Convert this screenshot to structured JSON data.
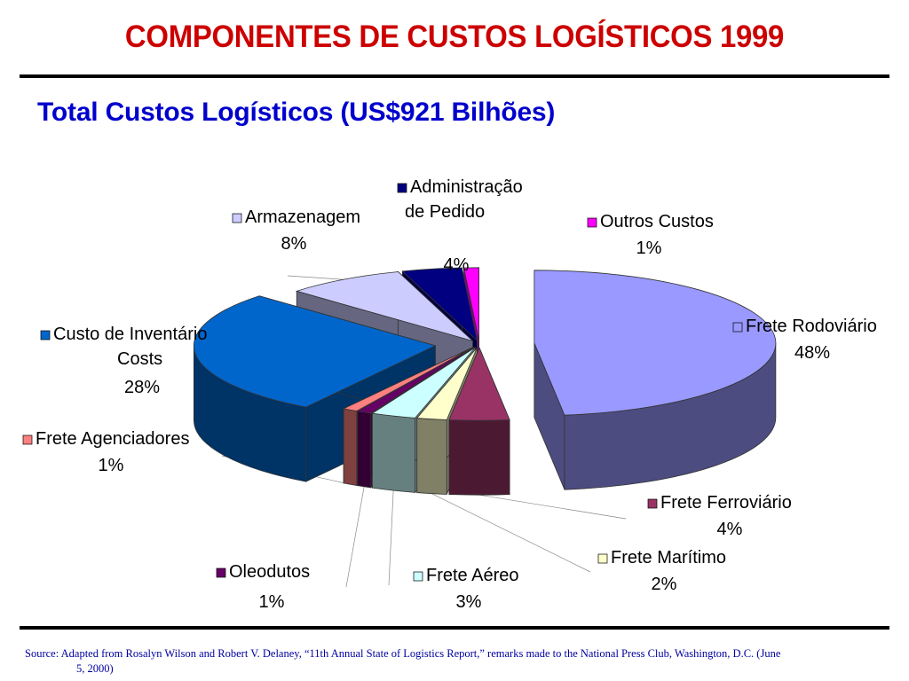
{
  "header": {
    "title": "COMPONENTES DE CUSTOS LOGÍSTICOS 1999",
    "subtitle": "Total Custos Logísticos (US$921 Bilhões)"
  },
  "footer": {
    "source_line1": "Source:  Adapted from Rosalyn Wilson and Robert V. Delaney, “11th Annual State of Logistics Report,” remarks made to the National Press Club, Washington, D.C. (June",
    "source_line2": "5, 2000)"
  },
  "chart_data": {
    "type": "pie",
    "style": "3d-exploded",
    "slices": [
      {
        "label": [
          "Frete Rodoviário"
        ],
        "value": 48,
        "value_label": "48%",
        "color": "#9999ff",
        "side_color": "#4c4c80"
      },
      {
        "label": [
          "Frete Ferroviário"
        ],
        "value": 4,
        "value_label": "4%",
        "color": "#993366",
        "side_color": "#4c1933"
      },
      {
        "label": [
          "Frete Marítimo"
        ],
        "value": 2,
        "value_label": "2%",
        "color": "#ffffcc",
        "side_color": "#808066"
      },
      {
        "label": [
          "Frete Aéreo"
        ],
        "value": 3,
        "value_label": "3%",
        "color": "#ccffff",
        "side_color": "#668080"
      },
      {
        "label": [
          "Oleodutos"
        ],
        "value": 1,
        "value_label": "1%",
        "color": "#660066",
        "side_color": "#330033"
      },
      {
        "label": [
          "Frete Agenciadores"
        ],
        "value": 1,
        "value_label": "1%",
        "color": "#ff8080",
        "side_color": "#804040"
      },
      {
        "label": [
          "Custo de Inventário",
          "Costs"
        ],
        "value": 28,
        "value_label": "28%",
        "color": "#0066cc",
        "side_color": "#003366"
      },
      {
        "label": [
          "Armazenagem"
        ],
        "value": 8,
        "value_label": "8%",
        "color": "#ccccff",
        "side_color": "#666680"
      },
      {
        "label": [
          "Administração",
          "de Pedido"
        ],
        "value": 4,
        "value_label": "4%",
        "color": "#000080",
        "side_color": "#000040"
      },
      {
        "label": [
          "Outros Custos"
        ],
        "value": 1,
        "value_label": "1%",
        "color": "#ff00ff",
        "side_color": "#800080"
      }
    ]
  }
}
